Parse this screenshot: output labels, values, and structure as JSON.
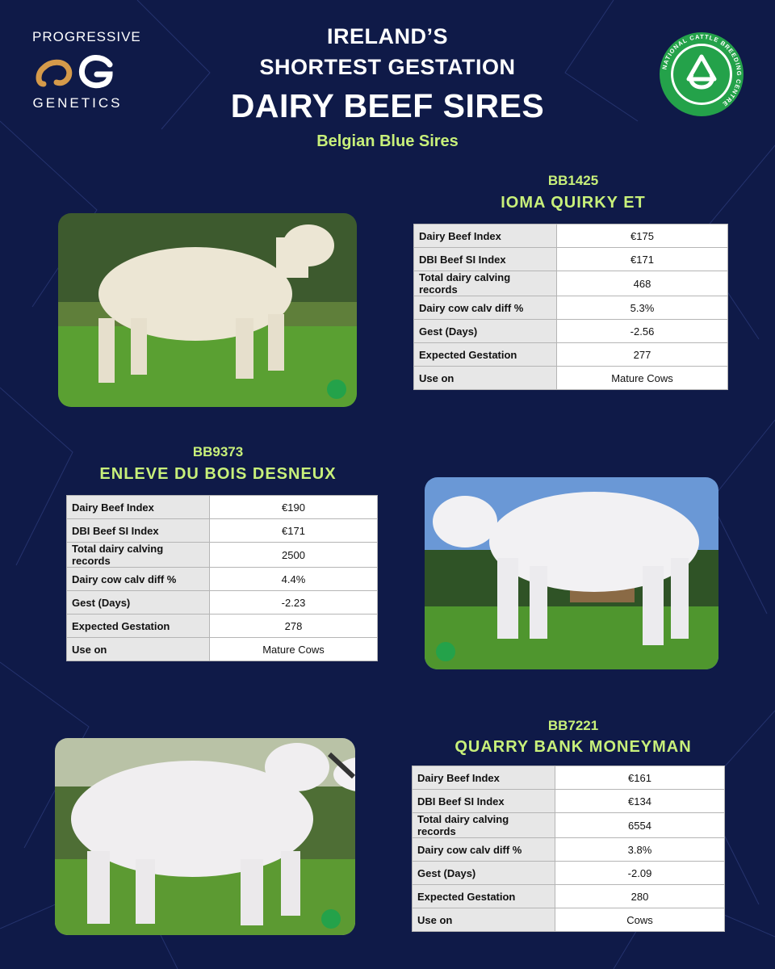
{
  "brand": {
    "logo_top": "PROGRESSIVE",
    "logo_bottom": "GENETICS",
    "ncbc_ring_text": "NATIONAL CATTLE BREEDING CENTRE"
  },
  "header": {
    "line1": "IRELAND’S",
    "line2": "SHORTEST GESTATION",
    "line3": "DAIRY BEEF SIRES",
    "subtitle": "Belgian Blue Sires"
  },
  "colors": {
    "background": "#0f1a48",
    "accent": "#c8f07a",
    "ncbc_green": "#24a24a"
  },
  "sires": [
    {
      "code": "BB1425",
      "name": "IOMA QUIRKY ET",
      "photo_icon": "bull-photo",
      "stats": [
        {
          "label": "Dairy Beef Index",
          "value": "€175"
        },
        {
          "label": "DBI Beef SI Index",
          "value": "€171"
        },
        {
          "label": "Total dairy calving records",
          "value": "468"
        },
        {
          "label": "Dairy cow calv diff %",
          "value": "5.3%"
        },
        {
          "label": "Gest (Days)",
          "value": "-2.56"
        },
        {
          "label": "Expected Gestation",
          "value": "277"
        },
        {
          "label": "Use on",
          "value": "Mature Cows"
        }
      ]
    },
    {
      "code": "BB9373",
      "name": "ENLEVE DU BOIS DESNEUX",
      "photo_icon": "bull-photo",
      "stats": [
        {
          "label": "Dairy Beef Index",
          "value": "€190"
        },
        {
          "label": "DBI Beef SI Index",
          "value": "€171"
        },
        {
          "label": "Total dairy calving records",
          "value": "2500"
        },
        {
          "label": "Dairy cow calv diff %",
          "value": "4.4%"
        },
        {
          "label": "Gest (Days)",
          "value": "-2.23"
        },
        {
          "label": "Expected Gestation",
          "value": "278"
        },
        {
          "label": "Use on",
          "value": "Mature Cows"
        }
      ]
    },
    {
      "code": "BB7221",
      "name": "QUARRY BANK MONEYMAN",
      "photo_icon": "bull-photo",
      "stats": [
        {
          "label": "Dairy Beef Index",
          "value": "€161"
        },
        {
          "label": "DBI Beef SI Index",
          "value": "€134"
        },
        {
          "label": "Total dairy calving records",
          "value": "6554"
        },
        {
          "label": "Dairy cow calv diff %",
          "value": "3.8%"
        },
        {
          "label": "Gest (Days)",
          "value": "-2.09"
        },
        {
          "label": "Expected Gestation",
          "value": "280"
        },
        {
          "label": "Use on",
          "value": "Cows"
        }
      ]
    }
  ]
}
